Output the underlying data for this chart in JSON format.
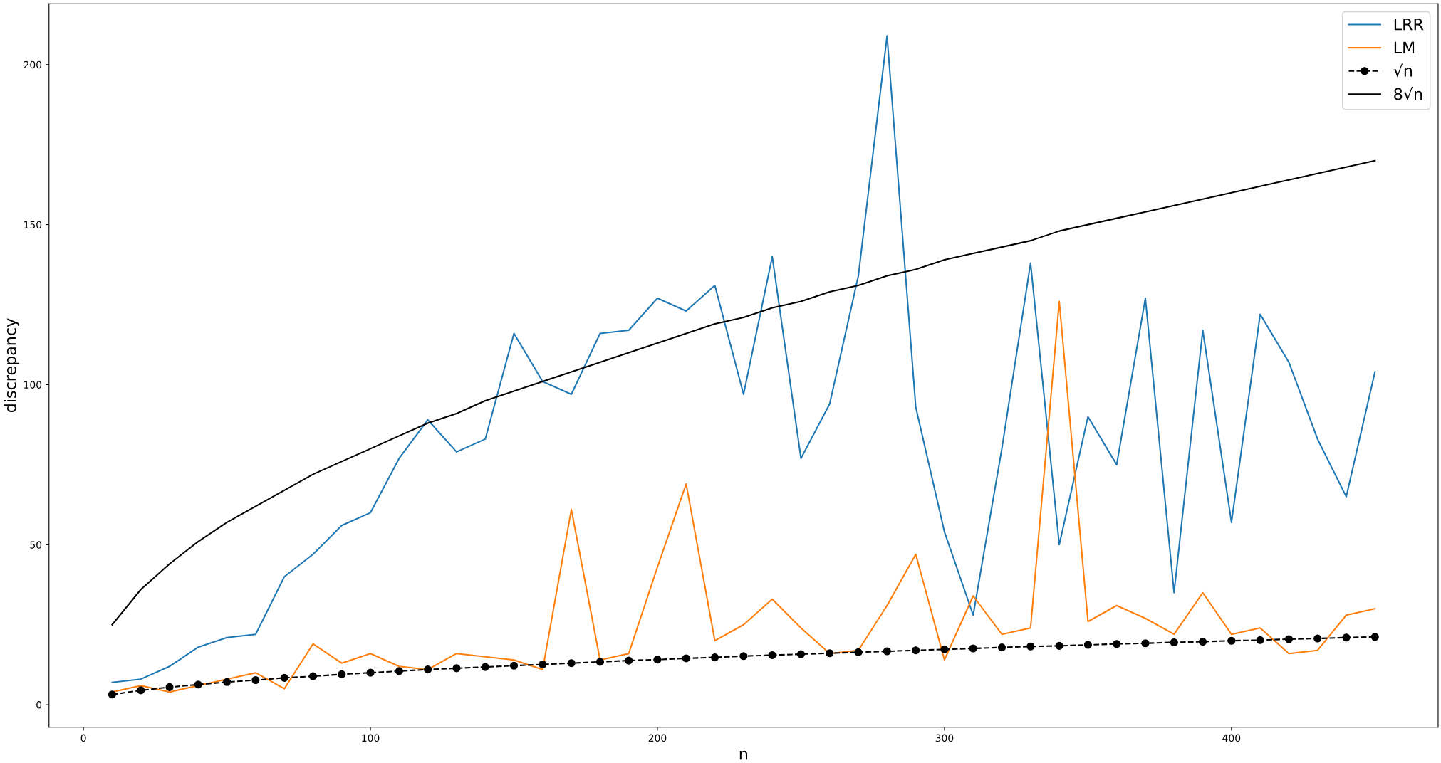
{
  "chart_data": {
    "type": "line",
    "xlabel": "n",
    "ylabel": "discrepancy",
    "x": [
      10,
      20,
      30,
      40,
      50,
      60,
      70,
      80,
      90,
      100,
      110,
      120,
      130,
      140,
      150,
      160,
      170,
      180,
      190,
      200,
      210,
      220,
      230,
      240,
      250,
      260,
      270,
      280,
      290,
      300,
      310,
      320,
      330,
      340,
      350,
      360,
      370,
      380,
      390,
      400,
      410,
      420,
      430,
      440,
      450
    ],
    "series": [
      {
        "name": "LRR",
        "color": "#1f77b4",
        "values": [
          7,
          8,
          12,
          18,
          21,
          22,
          40,
          47,
          56,
          60,
          77,
          89,
          79,
          83,
          116,
          101,
          97,
          116,
          117,
          127,
          123,
          131,
          97,
          140,
          77,
          94,
          134,
          209,
          93,
          54,
          28,
          80,
          138,
          50,
          90,
          75,
          127,
          35,
          117,
          57,
          122,
          107,
          83,
          65,
          104
        ]
      },
      {
        "name": "LM",
        "color": "#ff7f0e",
        "values": [
          4,
          6,
          4,
          6,
          8,
          10,
          5,
          19,
          13,
          16,
          12,
          11,
          16,
          15,
          14,
          11,
          61,
          14,
          16,
          43,
          69,
          20,
          25,
          33,
          24,
          16,
          17,
          31,
          47,
          14,
          34,
          22,
          24,
          126,
          26,
          31,
          27,
          22,
          35,
          22,
          24,
          16,
          17,
          28,
          30
        ]
      },
      {
        "name": "√n",
        "color": "#000000",
        "marker": "circle",
        "line_style": "dashed",
        "values": [
          3.2,
          4.5,
          5.5,
          6.3,
          7.1,
          7.7,
          8.4,
          8.9,
          9.5,
          10,
          10.5,
          11,
          11.4,
          11.8,
          12.2,
          12.6,
          13,
          13.4,
          13.8,
          14.1,
          14.5,
          14.8,
          15.2,
          15.5,
          15.8,
          16.1,
          16.4,
          16.7,
          17,
          17.3,
          17.6,
          17.9,
          18.2,
          18.4,
          18.7,
          19,
          19.2,
          19.5,
          19.7,
          20,
          20.2,
          20.5,
          20.7,
          21,
          21.2
        ]
      },
      {
        "name": "8√n",
        "color": "#000000",
        "values": [
          25,
          36,
          44,
          51,
          57,
          62,
          67,
          72,
          76,
          80,
          84,
          88,
          91,
          95,
          98,
          101,
          104,
          107,
          110,
          113,
          116,
          119,
          121,
          124,
          126,
          129,
          131,
          134,
          136,
          139,
          141,
          143,
          145,
          148,
          150,
          152,
          154,
          156,
          158,
          160,
          162,
          164,
          166,
          168,
          170
        ]
      }
    ],
    "xlim": [
      -12,
      472
    ],
    "ylim": [
      -7,
      219
    ],
    "xticks": [
      0,
      100,
      200,
      300,
      400
    ],
    "yticks": [
      0,
      50,
      100,
      150,
      200
    ],
    "legend": "top right",
    "grid": false
  }
}
